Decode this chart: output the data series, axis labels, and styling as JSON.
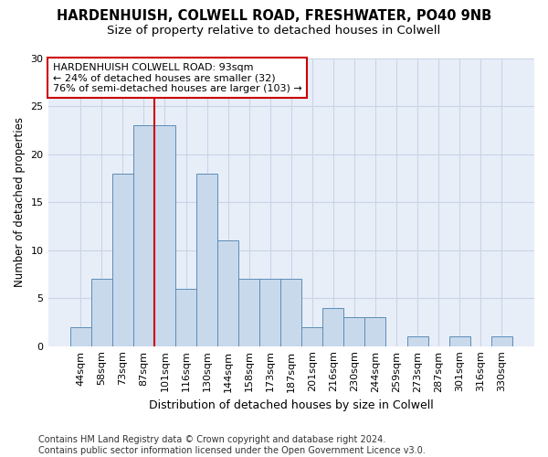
{
  "title1": "HARDENHUISH, COLWELL ROAD, FRESHWATER, PO40 9NB",
  "title2": "Size of property relative to detached houses in Colwell",
  "xlabel": "Distribution of detached houses by size in Colwell",
  "ylabel": "Number of detached properties",
  "bar_labels": [
    "44sqm",
    "58sqm",
    "73sqm",
    "87sqm",
    "101sqm",
    "116sqm",
    "130sqm",
    "144sqm",
    "158sqm",
    "173sqm",
    "187sqm",
    "201sqm",
    "216sqm",
    "230sqm",
    "244sqm",
    "259sqm",
    "273sqm",
    "287sqm",
    "301sqm",
    "316sqm",
    "330sqm"
  ],
  "bar_values": [
    2,
    7,
    18,
    23,
    23,
    6,
    18,
    11,
    7,
    7,
    7,
    2,
    4,
    3,
    3,
    0,
    1,
    0,
    1,
    0,
    1
  ],
  "bar_color": "#c9d9ec",
  "bar_edge_color": "#5b8db8",
  "vline_x_index": 3,
  "vline_color": "#cc0000",
  "annotation_text": "HARDENHUISH COLWELL ROAD: 93sqm\n← 24% of detached houses are smaller (32)\n76% of semi-detached houses are larger (103) →",
  "annotation_box_color": "#ffffff",
  "annotation_box_edge": "#cc0000",
  "ylim": [
    0,
    30
  ],
  "yticks": [
    0,
    5,
    10,
    15,
    20,
    25,
    30
  ],
  "grid_color": "#c8d4e8",
  "bg_color": "#e8eef8",
  "footnote": "Contains HM Land Registry data © Crown copyright and database right 2024.\nContains public sector information licensed under the Open Government Licence v3.0.",
  "title1_fontsize": 10.5,
  "title2_fontsize": 9.5,
  "xlabel_fontsize": 9,
  "ylabel_fontsize": 8.5,
  "tick_fontsize": 8,
  "annot_fontsize": 8,
  "footnote_fontsize": 7
}
